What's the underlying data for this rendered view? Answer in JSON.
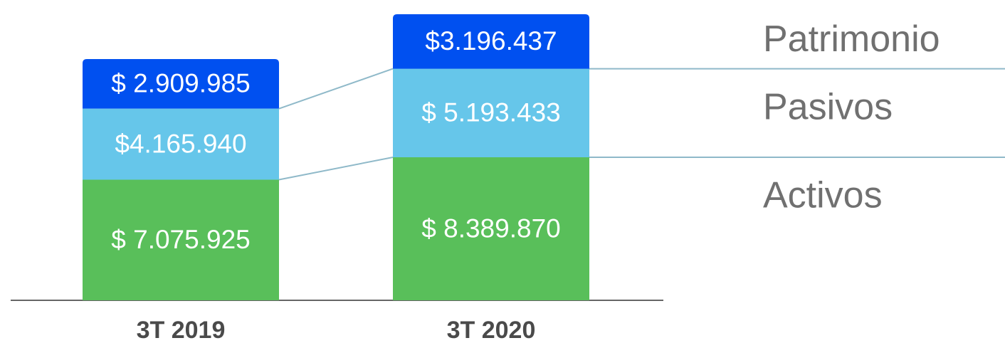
{
  "chart_data": {
    "type": "stacked_bar",
    "categories": [
      "3T 2019",
      "3T 2020"
    ],
    "series": [
      {
        "name": "Activos",
        "color": "#59bf5a",
        "values": [
          7075925,
          8389870
        ],
        "value_labels": [
          "$ 7.075.925",
          "$ 8.389.870"
        ]
      },
      {
        "name": "Pasivos",
        "color": "#66c6ea",
        "values": [
          4165940,
          5193433
        ],
        "value_labels": [
          "$4.165.940",
          "$ 5.193.433"
        ]
      },
      {
        "name": "Patrimonio",
        "color": "#0050f0",
        "values": [
          2909985,
          3196437
        ],
        "value_labels": [
          "$ 2.909.985",
          "$3.196.437"
        ]
      }
    ]
  }
}
